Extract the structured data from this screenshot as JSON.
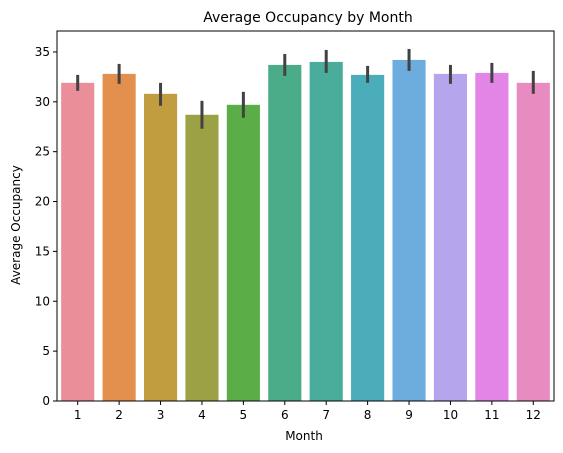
{
  "chart_data": {
    "type": "bar",
    "title": "Average Occupancy by Month",
    "xlabel": "Month",
    "ylabel": "Average Occupancy",
    "categories": [
      "1",
      "2",
      "3",
      "4",
      "5",
      "6",
      "7",
      "8",
      "9",
      "10",
      "11",
      "12"
    ],
    "values": [
      31.9,
      32.8,
      30.8,
      28.7,
      29.7,
      33.7,
      34.0,
      32.7,
      34.2,
      32.8,
      32.9,
      31.9
    ],
    "error_low": [
      31.1,
      31.8,
      29.6,
      27.3,
      28.4,
      32.6,
      32.9,
      31.9,
      33.1,
      31.8,
      31.9,
      30.8
    ],
    "error_high": [
      32.7,
      33.8,
      31.9,
      30.1,
      31.0,
      34.8,
      35.2,
      33.6,
      35.3,
      33.7,
      33.9,
      33.1
    ],
    "ylim": [
      0,
      37.1
    ],
    "yticks": [
      0,
      5,
      10,
      15,
      20,
      25,
      30,
      35
    ],
    "grid": false,
    "colors": [
      "#ea8f9a",
      "#e3904f",
      "#c29d3f",
      "#9ca145",
      "#5aad47",
      "#4aac88",
      "#4aad9b",
      "#4bacba",
      "#6cadde",
      "#b4a5ec",
      "#e385e6",
      "#e88bc1"
    ],
    "error_color": "#424242"
  }
}
